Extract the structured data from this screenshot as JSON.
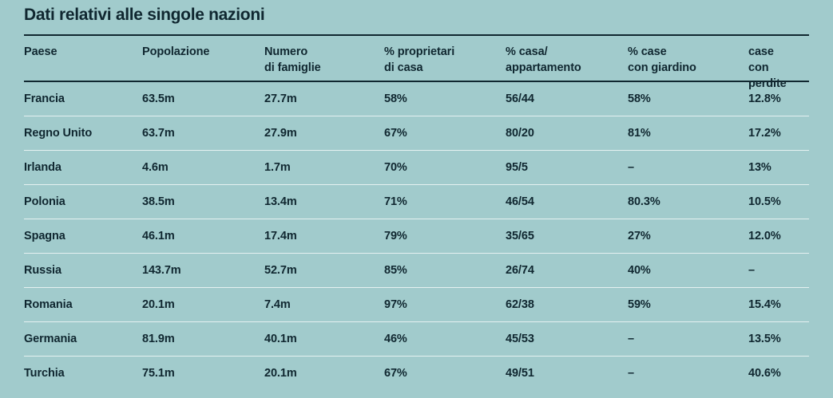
{
  "title": "Dati relativi alle singole nazioni",
  "colors": {
    "background": "#a1cbcc",
    "text": "#102730",
    "rule": "#102730",
    "row_divider": "rgba(255,255,255,0.72)"
  },
  "table": {
    "header_labels": [
      "Paese",
      "Popolazione",
      "Numero\ndi famiglie",
      "% proprietari\ndi casa",
      "% casa/\nappartamento",
      "% case\ncon giardino",
      "case\ncon perdite"
    ],
    "rows": [
      [
        "Francia",
        "63.5m",
        "27.7m",
        "58%",
        "56/44",
        "58%",
        "12.8%"
      ],
      [
        "Regno Unito",
        "63.7m",
        "27.9m",
        "67%",
        "80/20",
        "81%",
        "17.2%"
      ],
      [
        "Irlanda",
        "4.6m",
        "1.7m",
        "70%",
        "95/5",
        "–",
        "13%"
      ],
      [
        "Polonia",
        "38.5m",
        "13.4m",
        "71%",
        "46/54",
        "80.3%",
        "10.5%"
      ],
      [
        "Spagna",
        "46.1m",
        "17.4m",
        "79%",
        "35/65",
        "27%",
        "12.0%"
      ],
      [
        "Russia",
        "143.7m",
        "52.7m",
        "85%",
        "26/74",
        "40%",
        "–"
      ],
      [
        "Romania",
        "20.1m",
        "7.4m",
        "97%",
        "62/38",
        "59%",
        "15.4%"
      ],
      [
        "Germania",
        "81.9m",
        "40.1m",
        "46%",
        "45/53",
        "–",
        "13.5%"
      ],
      [
        "Turchia",
        "75.1m",
        "20.1m",
        "67%",
        "49/51",
        "–",
        "40.6%"
      ]
    ]
  },
  "chart_data": {
    "type": "table",
    "title": "Dati relativi alle singole nazioni",
    "columns": [
      "Paese",
      "Popolazione",
      "Numero di famiglie",
      "% proprietari di casa",
      "% casa/appartamento",
      "% case con giardino",
      "case con perdite"
    ],
    "rows": [
      [
        "Francia",
        "63.5m",
        "27.7m",
        "58%",
        "56/44",
        "58%",
        "12.8%"
      ],
      [
        "Regno Unito",
        "63.7m",
        "27.9m",
        "67%",
        "80/20",
        "81%",
        "17.2%"
      ],
      [
        "Irlanda",
        "4.6m",
        "1.7m",
        "70%",
        "95/5",
        "–",
        "13%"
      ],
      [
        "Polonia",
        "38.5m",
        "13.4m",
        "71%",
        "46/54",
        "80.3%",
        "10.5%"
      ],
      [
        "Spagna",
        "46.1m",
        "17.4m",
        "79%",
        "35/65",
        "27%",
        "12.0%"
      ],
      [
        "Russia",
        "143.7m",
        "52.7m",
        "85%",
        "26/74",
        "40%",
        "–"
      ],
      [
        "Romania",
        "20.1m",
        "7.4m",
        "97%",
        "62/38",
        "59%",
        "15.4%"
      ],
      [
        "Germania",
        "81.9m",
        "40.1m",
        "46%",
        "45/53",
        "–",
        "13.5%"
      ],
      [
        "Turchia",
        "75.1m",
        "20.1m",
        "67%",
        "49/51",
        "–",
        "40.6%"
      ]
    ]
  }
}
